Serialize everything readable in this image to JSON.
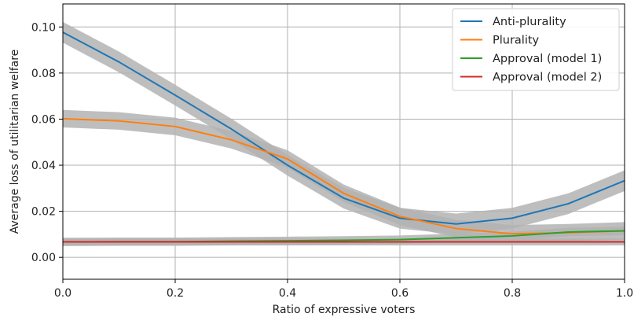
{
  "chart_data": {
    "type": "line",
    "xlabel": "Ratio of expressive voters",
    "ylabel": "Average loss of utilitarian welfare",
    "xlim": [
      0.0,
      1.0
    ],
    "ylim": [
      -0.0095,
      0.11
    ],
    "x_ticks": [
      "0.0",
      "0.2",
      "0.4",
      "0.6",
      "0.8",
      "1.0"
    ],
    "y_ticks": [
      "0.00",
      "0.02",
      "0.04",
      "0.06",
      "0.08",
      "0.10"
    ],
    "grid": true,
    "legend_position": "top-right",
    "x": [
      0.0,
      0.1,
      0.2,
      0.3,
      0.4,
      0.5,
      0.6,
      0.7,
      0.8,
      0.9,
      1.0
    ],
    "series": [
      {
        "name": "Anti-plurality",
        "color": "#1f77b4",
        "values": [
          0.0977,
          0.0848,
          0.0704,
          0.0557,
          0.04,
          0.0257,
          0.017,
          0.0145,
          0.017,
          0.0233,
          0.0333
        ],
        "band": 0.0045
      },
      {
        "name": "Plurality",
        "color": "#ff7f0e",
        "values": [
          0.0602,
          0.0592,
          0.0568,
          0.051,
          0.0427,
          0.0278,
          0.0178,
          0.0125,
          0.0102,
          0.0107,
          0.0115
        ],
        "band": 0.0038
      },
      {
        "name": "Approval (model 1)",
        "color": "#2ca02c",
        "values": [
          0.0067,
          0.0068,
          0.0068,
          0.007,
          0.0072,
          0.0074,
          0.0077,
          0.0085,
          0.0093,
          0.011,
          0.0115
        ],
        "band": 0.0018
      },
      {
        "name": "Approval (model 2)",
        "color": "#d62728",
        "values": [
          0.0067,
          0.0067,
          0.0067,
          0.0067,
          0.0067,
          0.0067,
          0.0067,
          0.0067,
          0.0067,
          0.0067,
          0.0067
        ],
        "band": 0.0015
      }
    ],
    "band_color": "#b3b3b3"
  }
}
